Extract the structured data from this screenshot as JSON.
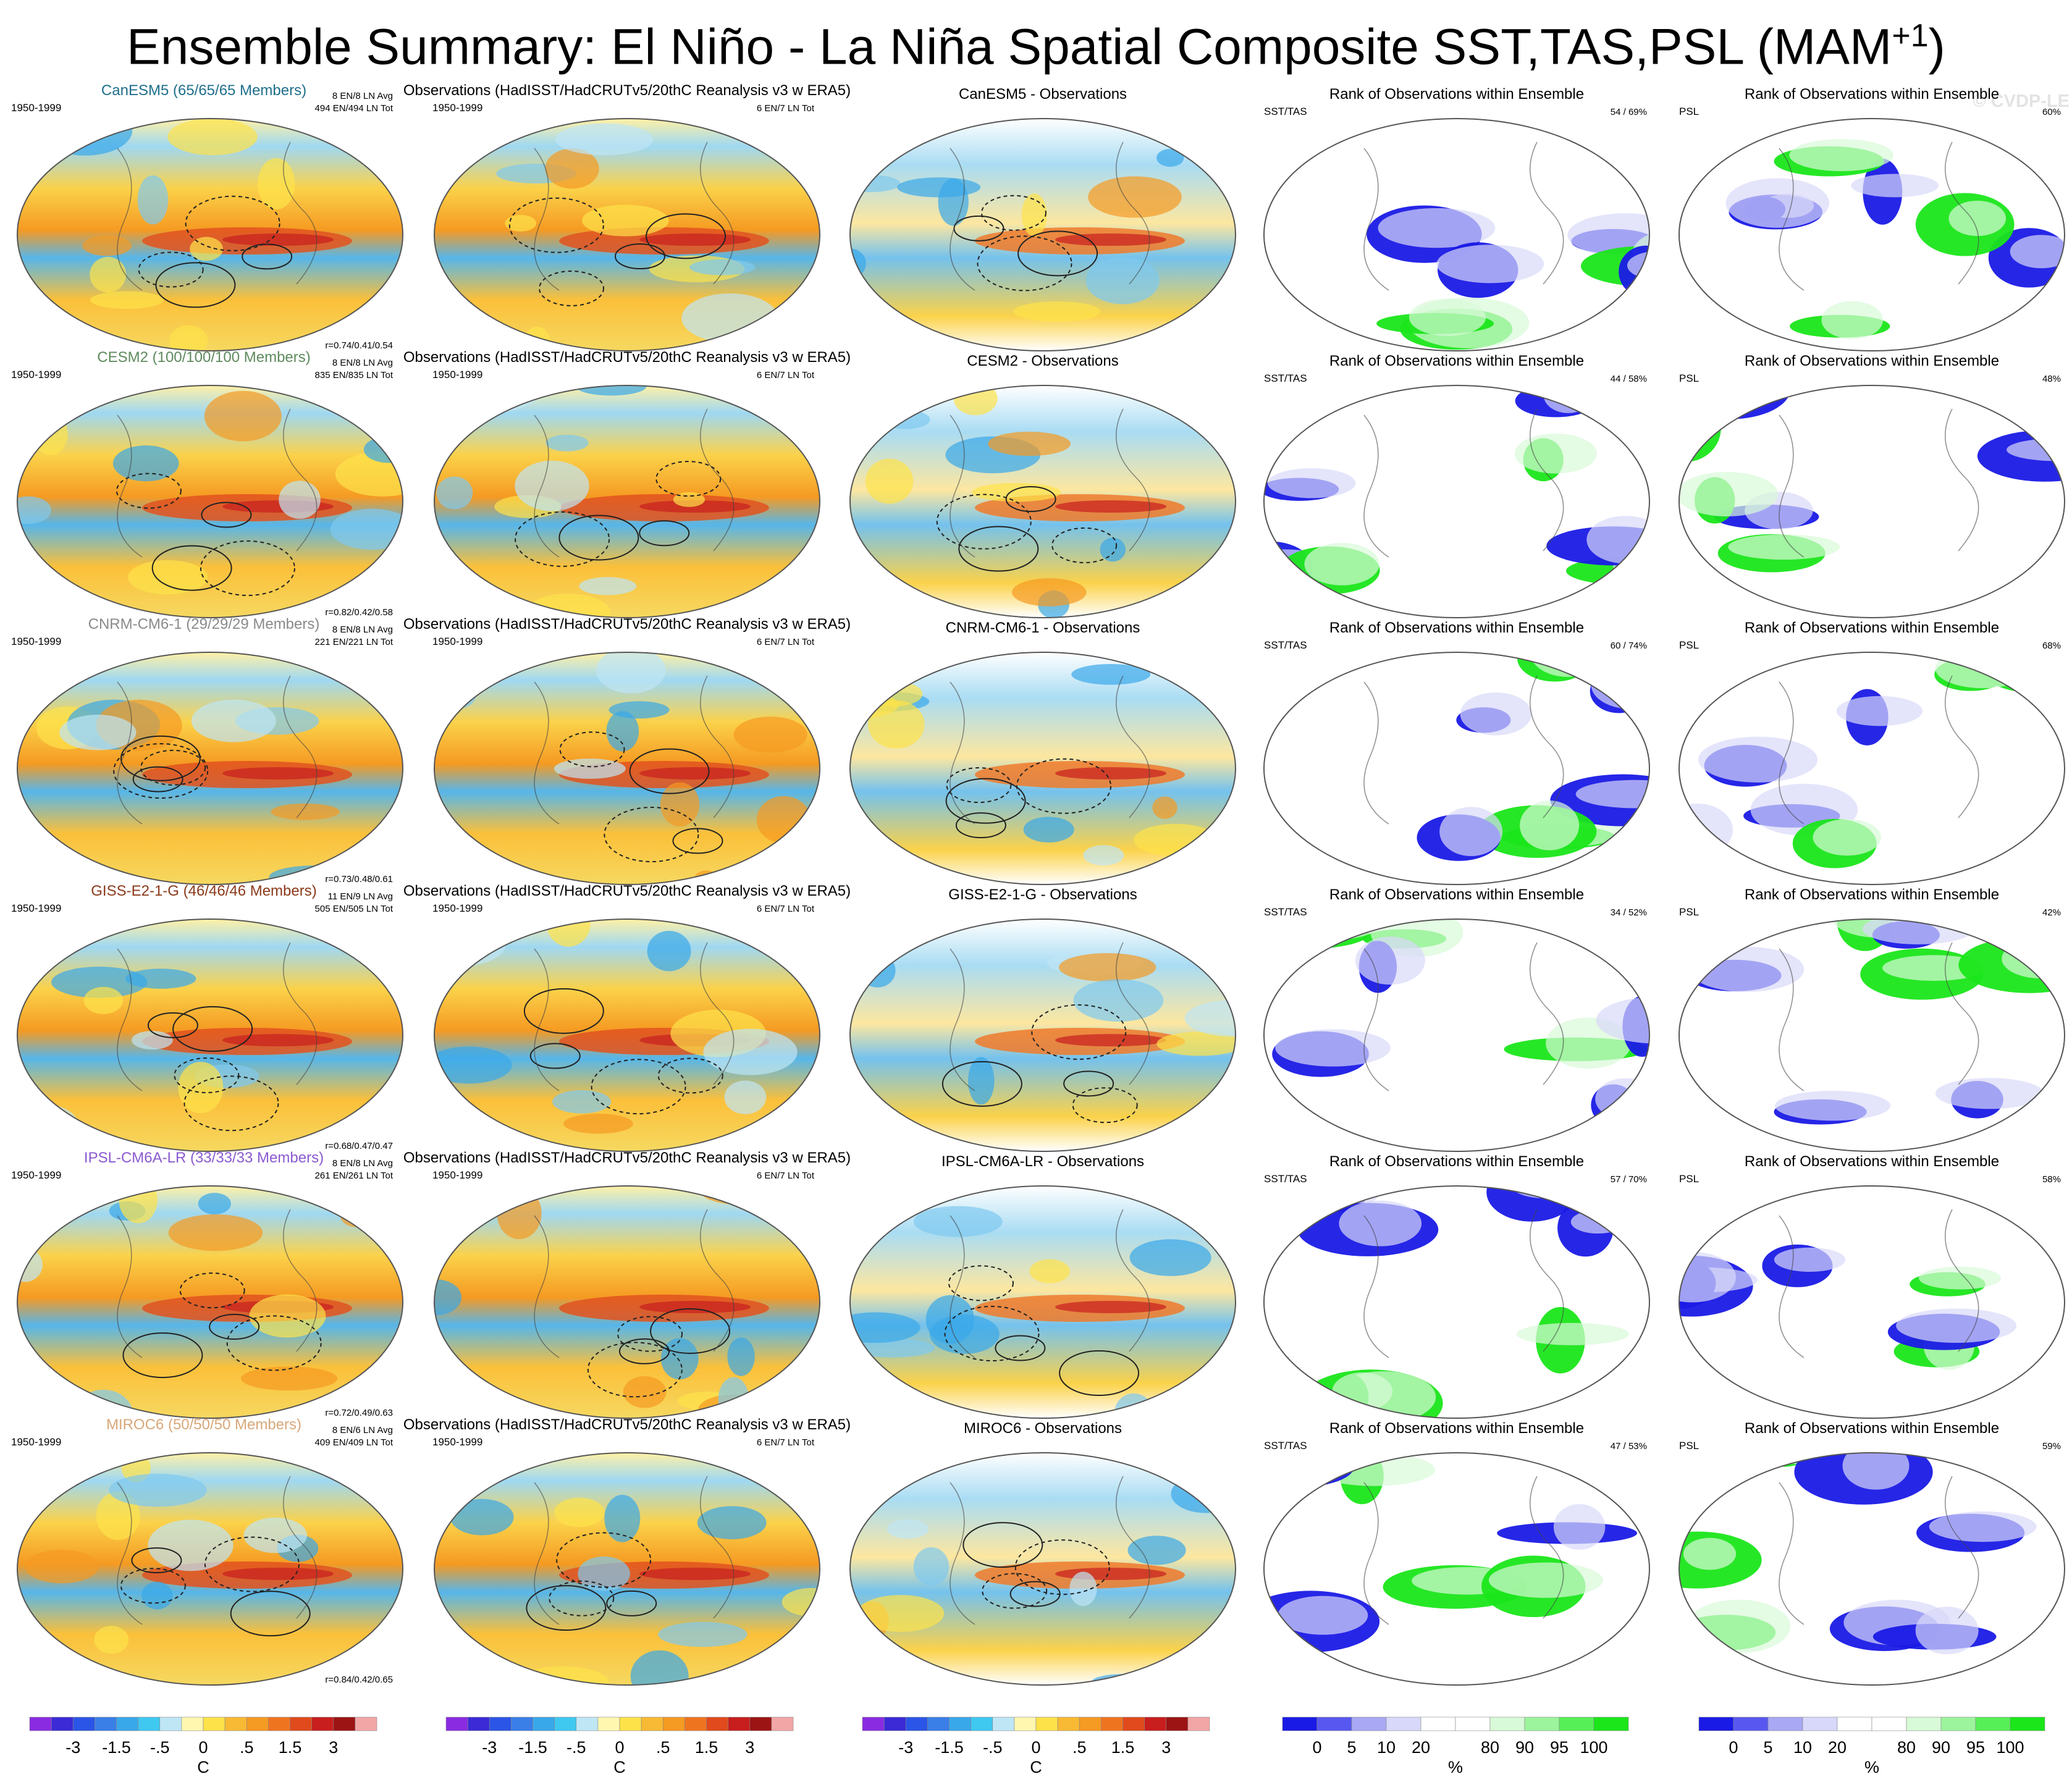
{
  "title": "Ensemble Summary: El Niño - La Niña Spatial Composite SST,TAS,PSL (MAM",
  "title_superscript": "+1",
  "title_suffix": ")",
  "watermark": "© CVDP-LE",
  "obs_title": "Observations (HadISST/HadCRUTv5/20thC Reanalysis v3 w ERA5)",
  "rank_title": "Rank of Observations within Ensemble",
  "sst_tas_label": "SST/TAS",
  "psl_label": "PSL",
  "period": "1950-1999",
  "obs_counts": "6 EN/7 LN Tot",
  "rows": [
    {
      "model": "CanESM5",
      "members_label": "CanESM5 (65/65/65 Members)",
      "model_color": "#1f6f8b",
      "counts_avg": "8 EN/8 LN Avg",
      "counts_tot": "494 EN/494 LN Tot",
      "corr": "r=0.74/0.41/0.54",
      "diff_title": "CanESM5 - Observations",
      "rank_sst": "54 /  69%",
      "rank_psl": "60%"
    },
    {
      "model": "CESM2",
      "members_label": "CESM2 (100/100/100 Members)",
      "model_color": "#5e8a5e",
      "counts_avg": "8 EN/8 LN Avg",
      "counts_tot": "835 EN/835 LN Tot",
      "corr": "r=0.82/0.42/0.58",
      "diff_title": "CESM2 - Observations",
      "rank_sst": "44 /  58%",
      "rank_psl": "48%"
    },
    {
      "model": "CNRM-CM6-1",
      "members_label": "CNRM-CM6-1 (29/29/29 Members)",
      "model_color": "#8a8a8a",
      "counts_avg": "8 EN/8 LN Avg",
      "counts_tot": "221 EN/221 LN Tot",
      "corr": "r=0.73/0.48/0.61",
      "diff_title": "CNRM-CM6-1 - Observations",
      "rank_sst": "60 /  74%",
      "rank_psl": "68%"
    },
    {
      "model": "GISS-E2-1-G",
      "members_label": "GISS-E2-1-G (46/46/46 Members)",
      "model_color": "#8b3a1a",
      "counts_avg": "11 EN/9 LN Avg",
      "counts_tot": "505 EN/505 LN Tot",
      "corr": "r=0.68/0.47/0.47",
      "diff_title": "GISS-E2-1-G - Observations",
      "rank_sst": "34 /  52%",
      "rank_psl": "42%"
    },
    {
      "model": "IPSL-CM6A-LR",
      "members_label": "IPSL-CM6A-LR (33/33/33 Members)",
      "model_color": "#8a5ad0",
      "counts_avg": "8 EN/8 LN Avg",
      "counts_tot": "261 EN/261 LN Tot",
      "corr": "r=0.72/0.49/0.63",
      "diff_title": "IPSL-CM6A-LR - Observations",
      "rank_sst": "57 /  70%",
      "rank_psl": "58%"
    },
    {
      "model": "MIROC6",
      "members_label": "MIROC6 (50/50/50 Members)",
      "model_color": "#d8a87a",
      "counts_avg": "8 EN/6 LN Avg",
      "counts_tot": "409 EN/409 LN Tot",
      "corr": "r=0.84/0.42/0.65",
      "diff_title": "MIROC6 - Observations",
      "rank_sst": "47 /  53%",
      "rank_psl": "59%"
    }
  ],
  "colorbar_temp": {
    "colors": [
      "#8a2be2",
      "#3b2ad6",
      "#2b55e6",
      "#3a7ee8",
      "#39a8ea",
      "#3fc8f0",
      "#bfe6f5",
      "#fff7b0",
      "#fde24a",
      "#f8b934",
      "#f59a22",
      "#ef7420",
      "#e04a1c",
      "#c81e1e",
      "#9c1414",
      "#f2a6a6"
    ],
    "tick_labels": [
      "-3",
      "-1.5",
      "-.5",
      "0",
      ".5",
      "1.5",
      "3"
    ],
    "tick_positions": [
      2,
      4,
      6,
      8,
      10,
      12,
      14
    ],
    "unit": "C"
  },
  "colorbar_rank": {
    "colors": [
      "#1a1ae6",
      "#5858f0",
      "#a8a8f4",
      "#d8d8fa",
      "#ffffff",
      "#ffffff",
      "#d8fad8",
      "#9cf49c",
      "#57ef57",
      "#1ae61a"
    ],
    "tick_labels": [
      "0",
      "5",
      "10",
      "20",
      "80",
      "90",
      "95",
      "100"
    ],
    "tick_positions": [
      1,
      2,
      3,
      4,
      6,
      7,
      8,
      9
    ],
    "unit": "%"
  }
}
